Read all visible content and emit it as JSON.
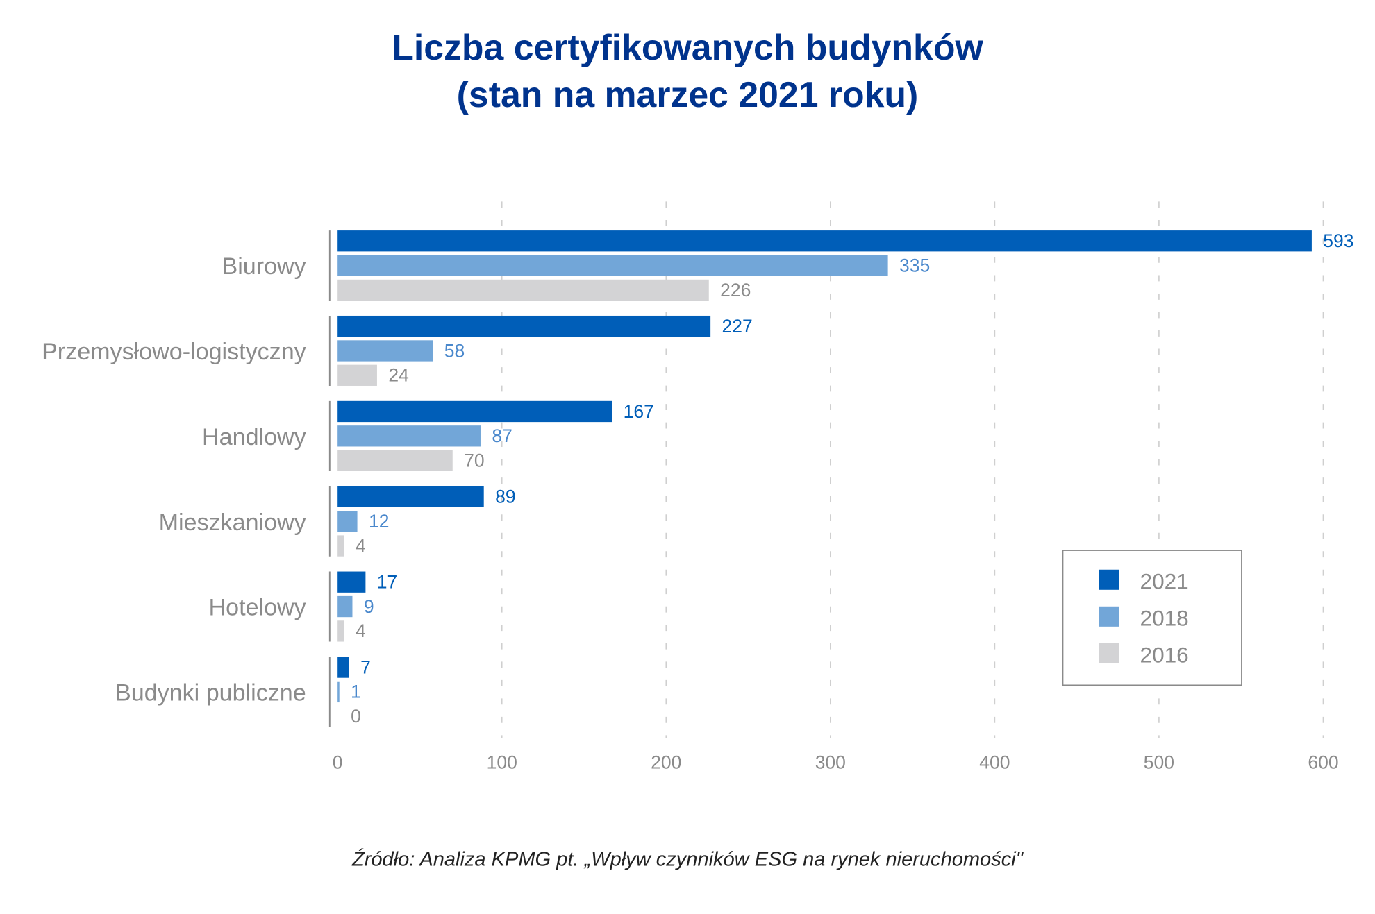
{
  "chart_data": {
    "type": "bar",
    "orientation": "horizontal",
    "title": [
      "Liczba certyfikowanych budynków",
      "(stan na marzec 2021 roku)"
    ],
    "categories": [
      "Biurowy",
      "Przemysłowo-logistyczny",
      "Handlowy",
      "Mieszkaniowy",
      "Hotelowy",
      "Budynki publiczne"
    ],
    "series": [
      {
        "name": "2021",
        "color": "#005EB8",
        "label_color": "#005EB8",
        "values": [
          593,
          227,
          167,
          89,
          17,
          7
        ]
      },
      {
        "name": "2018",
        "color": "#72A6D8",
        "label_color": "#4A88CC",
        "values": [
          335,
          58,
          87,
          12,
          9,
          1
        ]
      },
      {
        "name": "2016",
        "color": "#D3D3D5",
        "label_color": "#8a8a8a",
        "values": [
          226,
          24,
          70,
          4,
          4,
          0
        ]
      }
    ],
    "xlim": [
      0,
      600
    ],
    "xticks": [
      "0",
      "100",
      "200",
      "300",
      "400",
      "500",
      "600"
    ],
    "xlabel": "",
    "ylabel": "",
    "grid": "vertical dashed",
    "legend_position": "bottom-right",
    "source": "Źródło: Analiza KPMG pt. „Wpływ czynników ESG na rynek nieruchomości\""
  }
}
